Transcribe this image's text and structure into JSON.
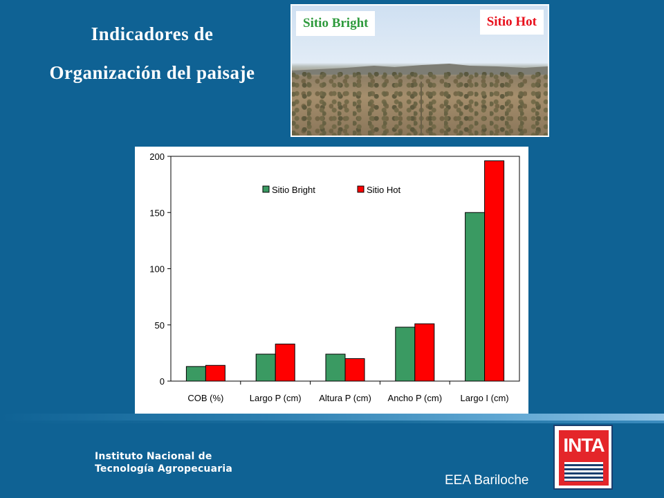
{
  "title": {
    "line1": "Indicadores de",
    "line2": "Organización del paisaje"
  },
  "photo": {
    "label_left": "Sitio Bright",
    "label_right": "Sitio Hot"
  },
  "footer": {
    "org_line1": "Instituto Nacional de",
    "org_line2": "Tecnología Agropecuaria",
    "station": "EEA Bariloche",
    "logo_text": "INTA"
  },
  "chart_data": {
    "type": "bar",
    "categories": [
      "COB (%)",
      "Largo P (cm)",
      "Altura P (cm)",
      "Ancho P (cm)",
      "Largo I (cm)"
    ],
    "series": [
      {
        "name": "Sitio Bright",
        "color": "#3a9a62",
        "values": [
          13,
          24,
          24,
          48,
          150
        ]
      },
      {
        "name": "Sitio Hot",
        "color": "#ff0000",
        "values": [
          14,
          33,
          20,
          51,
          196
        ]
      }
    ],
    "ylim": [
      0,
      200
    ],
    "yticks": [
      0,
      50,
      100,
      150,
      200
    ],
    "legend_position": "top-center",
    "grid": false
  }
}
